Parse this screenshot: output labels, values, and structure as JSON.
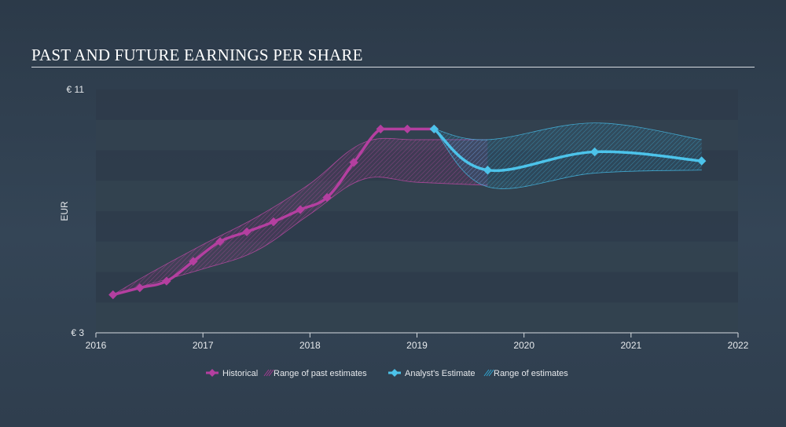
{
  "title": "PAST AND FUTURE EARNINGS PER SHARE",
  "chart_data": {
    "type": "line",
    "title": "PAST AND FUTURE EARNINGS PER SHARE",
    "ylabel": "EUR",
    "xlabel": "",
    "ylim": [
      3,
      11
    ],
    "xlim": [
      2016,
      2022
    ],
    "y_tick_labels": [
      {
        "value": 11,
        "label": "€ 11"
      },
      {
        "value": 3,
        "label": "€ 3"
      }
    ],
    "x_ticks": [
      2016,
      2017,
      2018,
      2019,
      2020,
      2021,
      2022
    ],
    "x_tick_labels": [
      "2016",
      "2017",
      "2018",
      "2019",
      "2020",
      "2021",
      "2022"
    ],
    "grid": "horizontal bands",
    "legend_position": "bottom-center",
    "colors": {
      "historical": "#b43fa0",
      "historical_band": "#a23a90",
      "estimate": "#4cc3ea",
      "estimate_band": "#2fa6d1",
      "band_dark": "#2e3b4a",
      "band_light": "#33424f"
    },
    "series": [
      {
        "name": "Historical",
        "x": [
          2016.16,
          2016.41,
          2016.66,
          2016.91,
          2017.16,
          2017.41,
          2017.66,
          2017.91,
          2018.16,
          2018.41,
          2018.66,
          2018.91,
          2019.16
        ],
        "y": [
          4.25,
          4.48,
          4.7,
          5.35,
          6.0,
          6.32,
          6.65,
          7.05,
          7.45,
          8.6,
          9.7,
          9.7,
          9.7
        ]
      },
      {
        "name": "Range of past estimates",
        "x": [
          2016.16,
          2016.5,
          2017.0,
          2017.5,
          2018.0,
          2018.5,
          2019.0,
          2019.66
        ],
        "upper": [
          4.25,
          4.95,
          5.9,
          6.8,
          7.9,
          9.25,
          9.35,
          9.35
        ],
        "lower": [
          4.25,
          4.6,
          5.1,
          5.7,
          6.9,
          8.05,
          7.95,
          7.85
        ]
      },
      {
        "name": "Analyst's Estimate",
        "x": [
          2019.16,
          2019.66,
          2020.66,
          2021.66
        ],
        "y": [
          9.7,
          8.35,
          8.95,
          8.65
        ]
      },
      {
        "name": "Range of estimates",
        "x": [
          2019.16,
          2019.66,
          2020.66,
          2021.66
        ],
        "upper": [
          9.7,
          9.35,
          9.9,
          9.35
        ],
        "lower": [
          9.7,
          7.8,
          8.25,
          8.35
        ]
      }
    ],
    "legend": [
      {
        "key": "historical",
        "label": "Historical",
        "kind": "line"
      },
      {
        "key": "historical_band",
        "label": "Range of past estimates",
        "kind": "band"
      },
      {
        "key": "estimate",
        "label": "Analyst's Estimate",
        "kind": "line"
      },
      {
        "key": "estimate_band",
        "label": "Range of estimates",
        "kind": "band"
      }
    ]
  }
}
